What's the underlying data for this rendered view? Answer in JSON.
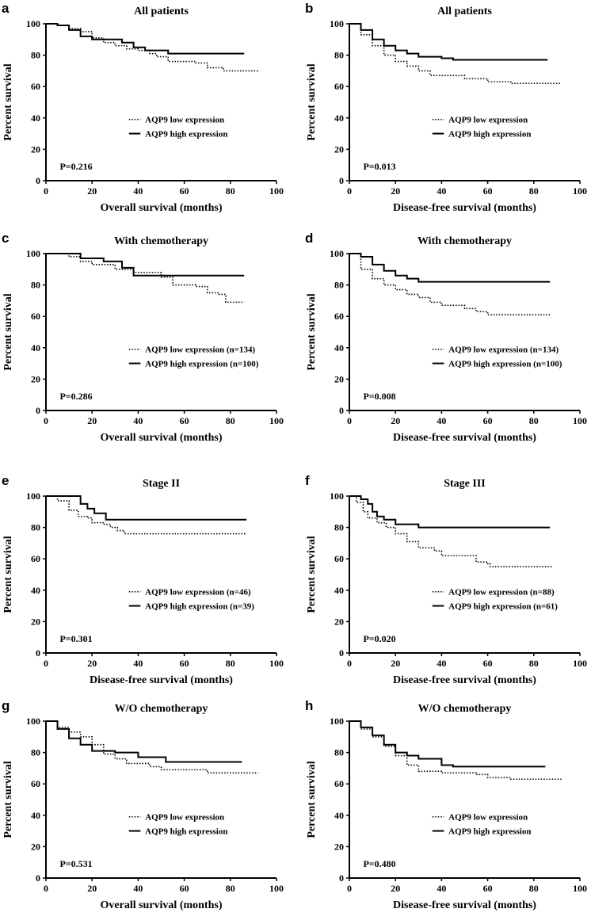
{
  "chart_data": [
    {
      "panel": "a",
      "type": "line",
      "title": "All patients",
      "xlabel": "Overall survival (months)",
      "ylabel": "Percent survival",
      "xlim": [
        0,
        100
      ],
      "ylim": [
        0,
        100
      ],
      "xticks": [
        "0",
        "20",
        "40",
        "60",
        "80",
        "100"
      ],
      "yticks": [
        "0",
        "20",
        "40",
        "60",
        "80",
        "100"
      ],
      "p_value": "P=0.216",
      "series": [
        {
          "name": "AQP9 low expression",
          "style": "dotted",
          "points": [
            [
              0,
              100
            ],
            [
              5,
              99
            ],
            [
              10,
              97
            ],
            [
              15,
              95
            ],
            [
              20,
              91
            ],
            [
              25,
              88
            ],
            [
              30,
              86
            ],
            [
              35,
              84
            ],
            [
              40,
              83
            ],
            [
              45,
              81
            ],
            [
              48,
              79
            ],
            [
              53,
              76
            ],
            [
              65,
              75
            ],
            [
              70,
              72
            ],
            [
              77,
              70
            ],
            [
              92,
              70
            ]
          ]
        },
        {
          "name": "AQP9 high expression",
          "style": "solid",
          "points": [
            [
              0,
              100
            ],
            [
              5,
              99
            ],
            [
              10,
              96
            ],
            [
              15,
              92
            ],
            [
              20,
              90
            ],
            [
              28,
              90
            ],
            [
              33,
              88
            ],
            [
              38,
              85
            ],
            [
              43,
              83
            ],
            [
              53,
              81
            ],
            [
              86,
              81
            ]
          ]
        }
      ]
    },
    {
      "panel": "b",
      "type": "line",
      "title": "All patients",
      "xlabel": "Disease-free survival (months)",
      "ylabel": "Percent survival",
      "xlim": [
        0,
        100
      ],
      "ylim": [
        0,
        100
      ],
      "xticks": [
        "0",
        "20",
        "40",
        "60",
        "80",
        "100"
      ],
      "yticks": [
        "0",
        "20",
        "40",
        "60",
        "80",
        "100"
      ],
      "p_value": "P=0.013",
      "series": [
        {
          "name": "AQP9 low expression",
          "style": "dotted",
          "points": [
            [
              0,
              100
            ],
            [
              5,
              93
            ],
            [
              10,
              86
            ],
            [
              15,
              80
            ],
            [
              20,
              76
            ],
            [
              25,
              73
            ],
            [
              30,
              70
            ],
            [
              35,
              67
            ],
            [
              45,
              67
            ],
            [
              50,
              65
            ],
            [
              60,
              63
            ],
            [
              70,
              62
            ],
            [
              92,
              62
            ]
          ]
        },
        {
          "name": "AQP9 high expression",
          "style": "solid",
          "points": [
            [
              0,
              100
            ],
            [
              5,
              96
            ],
            [
              10,
              90
            ],
            [
              15,
              86
            ],
            [
              20,
              83
            ],
            [
              25,
              81
            ],
            [
              30,
              79
            ],
            [
              40,
              78
            ],
            [
              45,
              77
            ],
            [
              86,
              77
            ]
          ]
        }
      ]
    },
    {
      "panel": "c",
      "type": "line",
      "title": "With chemotherapy",
      "xlabel": "Overall survival (months)",
      "ylabel": "Percent survival",
      "xlim": [
        0,
        100
      ],
      "ylim": [
        0,
        100
      ],
      "xticks": [
        "0",
        "20",
        "40",
        "60",
        "80",
        "100"
      ],
      "yticks": [
        "0",
        "20",
        "40",
        "60",
        "80",
        "100"
      ],
      "p_value": "P=0.286",
      "series": [
        {
          "name": "AQP9 low expression (n=134)",
          "style": "dotted",
          "points": [
            [
              0,
              100
            ],
            [
              10,
              98
            ],
            [
              15,
              95
            ],
            [
              20,
              93
            ],
            [
              30,
              90
            ],
            [
              38,
              88
            ],
            [
              50,
              85
            ],
            [
              55,
              80
            ],
            [
              65,
              79
            ],
            [
              70,
              75
            ],
            [
              75,
              74
            ],
            [
              78,
              69
            ],
            [
              86,
              69
            ]
          ]
        },
        {
          "name": "AQP9 high expression (n=100)",
          "style": "solid",
          "points": [
            [
              0,
              100
            ],
            [
              8,
              100
            ],
            [
              15,
              97
            ],
            [
              25,
              95
            ],
            [
              33,
              91
            ],
            [
              38,
              86
            ],
            [
              86,
              86
            ]
          ]
        }
      ]
    },
    {
      "panel": "d",
      "type": "line",
      "title": "With chemotherapy",
      "xlabel": "Disease-free survival (months)",
      "ylabel": "Percent survival",
      "xlim": [
        0,
        100
      ],
      "ylim": [
        0,
        100
      ],
      "xticks": [
        "0",
        "20",
        "40",
        "60",
        "80",
        "100"
      ],
      "yticks": [
        "0",
        "20",
        "40",
        "60",
        "80",
        "100"
      ],
      "p_value": "P=0.008",
      "series": [
        {
          "name": "AQP9 low expression (n=134)",
          "style": "dotted",
          "points": [
            [
              0,
              100
            ],
            [
              5,
              90
            ],
            [
              10,
              84
            ],
            [
              15,
              80
            ],
            [
              20,
              77
            ],
            [
              25,
              74
            ],
            [
              30,
              72
            ],
            [
              35,
              69
            ],
            [
              40,
              67
            ],
            [
              45,
              67
            ],
            [
              50,
              65
            ],
            [
              55,
              63
            ],
            [
              60,
              61
            ],
            [
              87,
              61
            ]
          ]
        },
        {
          "name": "AQP9 high expression (n=100)",
          "style": "solid",
          "points": [
            [
              0,
              100
            ],
            [
              5,
              98
            ],
            [
              10,
              93
            ],
            [
              15,
              89
            ],
            [
              20,
              86
            ],
            [
              25,
              84
            ],
            [
              30,
              82
            ],
            [
              87,
              82
            ]
          ]
        }
      ]
    },
    {
      "panel": "e",
      "type": "line",
      "title": "Stage II",
      "xlabel": "Disease-free survival (months)",
      "ylabel": "Percent survival",
      "xlim": [
        0,
        100
      ],
      "ylim": [
        0,
        100
      ],
      "xticks": [
        "0",
        "20",
        "40",
        "60",
        "80",
        "100"
      ],
      "yticks": [
        "0",
        "20",
        "40",
        "60",
        "80",
        "100"
      ],
      "p_value": "P=0.301",
      "series": [
        {
          "name": "AQP9 low expression (n=46)",
          "style": "dotted",
          "points": [
            [
              0,
              100
            ],
            [
              5,
              97
            ],
            [
              10,
              91
            ],
            [
              14,
              87
            ],
            [
              18,
              86
            ],
            [
              20,
              83
            ],
            [
              25,
              82
            ],
            [
              28,
              80
            ],
            [
              31,
              78
            ],
            [
              34,
              76
            ],
            [
              87,
              76
            ]
          ]
        },
        {
          "name": "AQP9 high expression (n=39)",
          "style": "solid",
          "points": [
            [
              0,
              100
            ],
            [
              13,
              100
            ],
            [
              15,
              95
            ],
            [
              18,
              92
            ],
            [
              21,
              89
            ],
            [
              26,
              85
            ],
            [
              87,
              85
            ]
          ]
        }
      ]
    },
    {
      "panel": "f",
      "type": "line",
      "title": "Stage III",
      "xlabel": "Disease-free survival (months)",
      "ylabel": "Percent survival",
      "xlim": [
        0,
        100
      ],
      "ylim": [
        0,
        100
      ],
      "xticks": [
        "0",
        "20",
        "40",
        "60",
        "80",
        "100"
      ],
      "yticks": [
        "0",
        "20",
        "40",
        "60",
        "80",
        "100"
      ],
      "p_value": "P=0.020",
      "series": [
        {
          "name": "AQP9 low expression (n=88)",
          "style": "dotted",
          "points": [
            [
              0,
              100
            ],
            [
              3,
              96
            ],
            [
              6,
              90
            ],
            [
              8,
              86
            ],
            [
              12,
              83
            ],
            [
              16,
              80
            ],
            [
              20,
              76
            ],
            [
              25,
              71
            ],
            [
              30,
              67
            ],
            [
              37,
              65
            ],
            [
              40,
              62
            ],
            [
              50,
              62
            ],
            [
              55,
              58
            ],
            [
              60,
              57
            ],
            [
              61,
              55
            ],
            [
              88,
              55
            ]
          ]
        },
        {
          "name": "AQP9 high expression (n=61)",
          "style": "solid",
          "points": [
            [
              0,
              100
            ],
            [
              5,
              98
            ],
            [
              8,
              95
            ],
            [
              10,
              90
            ],
            [
              12,
              87
            ],
            [
              15,
              85
            ],
            [
              20,
              82
            ],
            [
              30,
              80
            ],
            [
              87,
              80
            ]
          ]
        }
      ]
    },
    {
      "panel": "g",
      "type": "line",
      "title": "W/O chemotherapy",
      "xlabel": "Overall survival (months)",
      "ylabel": "Percent survival",
      "xlim": [
        0,
        100
      ],
      "ylim": [
        0,
        100
      ],
      "xticks": [
        "0",
        "20",
        "40",
        "60",
        "80",
        "100"
      ],
      "yticks": [
        "0",
        "20",
        "40",
        "60",
        "80",
        "100"
      ],
      "p_value": "P=0.531",
      "series": [
        {
          "name": "AQP9 low expression",
          "style": "dotted",
          "points": [
            [
              0,
              100
            ],
            [
              5,
              96
            ],
            [
              10,
              93
            ],
            [
              15,
              90
            ],
            [
              20,
              85
            ],
            [
              25,
              79
            ],
            [
              30,
              76
            ],
            [
              35,
              73
            ],
            [
              45,
              71
            ],
            [
              50,
              69
            ],
            [
              70,
              67
            ],
            [
              92,
              67
            ]
          ]
        },
        {
          "name": "AQP9 high expression",
          "style": "solid",
          "points": [
            [
              0,
              100
            ],
            [
              5,
              95
            ],
            [
              10,
              89
            ],
            [
              15,
              85
            ],
            [
              20,
              81
            ],
            [
              30,
              80
            ],
            [
              40,
              77
            ],
            [
              52,
              74
            ],
            [
              85,
              74
            ]
          ]
        }
      ]
    },
    {
      "panel": "h",
      "type": "line",
      "title": "W/O chemotherapy",
      "xlabel": "Disease-free survival (months)",
      "ylabel": "Percent survival",
      "xlim": [
        0,
        100
      ],
      "ylim": [
        0,
        100
      ],
      "xticks": [
        "0",
        "20",
        "40",
        "60",
        "80",
        "100"
      ],
      "yticks": [
        "0",
        "20",
        "40",
        "60",
        "80",
        "100"
      ],
      "p_value": "P=0.480",
      "series": [
        {
          "name": "AQP9 low expression",
          "style": "dotted",
          "points": [
            [
              0,
              100
            ],
            [
              5,
              95
            ],
            [
              10,
              90
            ],
            [
              15,
              84
            ],
            [
              20,
              78
            ],
            [
              25,
              72
            ],
            [
              30,
              68
            ],
            [
              40,
              67
            ],
            [
              55,
              66
            ],
            [
              60,
              64
            ],
            [
              70,
              63
            ],
            [
              92,
              63
            ]
          ]
        },
        {
          "name": "AQP9 high expression",
          "style": "solid",
          "points": [
            [
              0,
              100
            ],
            [
              5,
              96
            ],
            [
              10,
              91
            ],
            [
              15,
              85
            ],
            [
              20,
              80
            ],
            [
              25,
              78
            ],
            [
              30,
              76
            ],
            [
              40,
              72
            ],
            [
              45,
              71
            ],
            [
              85,
              71
            ]
          ]
        }
      ]
    }
  ]
}
